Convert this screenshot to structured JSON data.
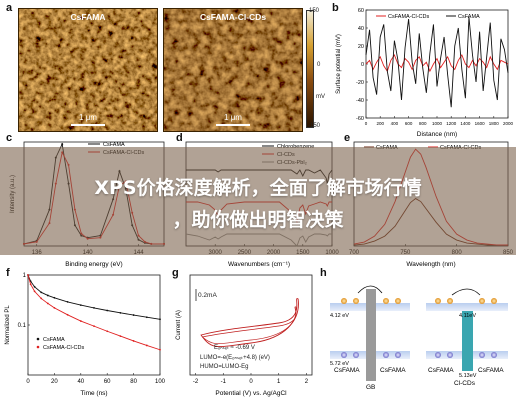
{
  "banner": {
    "line1": "XPS价格深度解析，全面了解市场行情",
    "line2": "，助你做出明智决策"
  },
  "panels": {
    "a": {
      "label": "a",
      "img1_title": "CsFAMA",
      "img2_title": "CsFAMA-Cl-CDs",
      "scale": "1 μm",
      "cbar_top": "150",
      "cbar_mid": "0",
      "cbar_bottom": "-150",
      "cbar_unit": "mV"
    },
    "b": {
      "label": "b"
    },
    "c": {
      "label": "c"
    },
    "d": {
      "label": "d"
    },
    "e": {
      "label": "e"
    },
    "f": {
      "label": "f"
    },
    "g": {
      "label": "g",
      "scale_label": "0.2mA",
      "eq1": "Eₒₙₛₑₜ ≈ -0.69 V",
      "eq2": "LUMO=-e(Eₒₙₛₑₜ+4.8) (eV)",
      "eq3": "HUMO=LUMO-Eg"
    },
    "h": {
      "label": "h",
      "left_top": "4.12 eV",
      "left_bottom": "5.72 eV",
      "right_top": "4.11eV",
      "right_bottom": "5.13eV",
      "left_name": "CsFAMA",
      "left_mid": "GB",
      "left_name2": "CsFAMA",
      "right_name": "CsFAMA",
      "right_mid": "Cl-CDs",
      "right_name2": "CsFAMA"
    }
  },
  "chart_data": [
    {
      "id": "b",
      "type": "line",
      "xlabel": "Distance (nm)",
      "ylabel": "Surface potential (mV)",
      "xlim": [
        0,
        2000
      ],
      "ylim": [
        -60,
        60
      ],
      "xticks": [
        0,
        200,
        400,
        600,
        800,
        1000,
        1200,
        1400,
        1600,
        1800,
        2000
      ],
      "yticks": [
        -60,
        -40,
        -20,
        0,
        20,
        40,
        60
      ],
      "legend_position": "top",
      "series": [
        {
          "name": "CsFAMA-Cl-CDs",
          "color": "#e02020",
          "x": [
            0,
            50,
            100,
            150,
            200,
            250,
            300,
            350,
            400,
            450,
            500,
            550,
            600,
            650,
            700,
            750,
            800,
            850,
            900,
            950,
            1000,
            1050,
            1100,
            1150,
            1200,
            1250,
            1300,
            1350,
            1400,
            1450,
            1500,
            1550,
            1600,
            1650,
            1700,
            1750,
            1800,
            1850,
            1900,
            1950,
            2000
          ],
          "y": [
            0,
            4,
            -6,
            2,
            8,
            -2,
            -8,
            4,
            10,
            0,
            -4,
            6,
            2,
            -6,
            4,
            8,
            -2,
            2,
            -8,
            0,
            6,
            -4,
            2,
            8,
            -2,
            -6,
            4,
            10,
            0,
            -4,
            4,
            -2,
            6,
            2,
            -4,
            8,
            0,
            -6,
            4,
            2,
            0
          ]
        },
        {
          "name": "CsFAMA",
          "color": "#111111",
          "x": [
            0,
            50,
            100,
            150,
            200,
            250,
            300,
            350,
            400,
            450,
            500,
            550,
            600,
            650,
            700,
            750,
            800,
            850,
            900,
            950,
            1000,
            1050,
            1100,
            1150,
            1200,
            1250,
            1300,
            1350,
            1400,
            1450,
            1500,
            1550,
            1600,
            1650,
            1700,
            1750,
            1800,
            1850,
            1900,
            1950,
            2000
          ],
          "y": [
            10,
            38,
            -15,
            -34,
            30,
            44,
            -8,
            -30,
            26,
            4,
            -40,
            18,
            50,
            2,
            -22,
            34,
            -5,
            -32,
            12,
            44,
            -25,
            6,
            30,
            -12,
            -48,
            20,
            40,
            -6,
            -38,
            52,
            10,
            -20,
            36,
            -30,
            8,
            46,
            -18,
            -40,
            28,
            16,
            -10
          ]
        }
      ]
    },
    {
      "id": "c",
      "type": "line",
      "xlabel": "Binding energy (eV)",
      "ylabel": "Intensity (a.u.)",
      "xlim": [
        135,
        146
      ],
      "xticks": [
        136,
        140,
        144
      ],
      "legend_position": "top-right",
      "series": [
        {
          "name": "CsFAMA",
          "color": "#111111",
          "x": [
            135,
            136,
            137,
            137.5,
            138,
            138.5,
            139,
            139.5,
            140,
            141,
            142,
            142.5,
            143,
            143.5,
            144,
            144.5,
            145,
            146
          ],
          "y": [
            0.02,
            0.05,
            0.35,
            0.85,
            0.98,
            0.6,
            0.2,
            0.1,
            0.08,
            0.1,
            0.45,
            0.72,
            0.55,
            0.2,
            0.06,
            0.03,
            0.02,
            0.02
          ]
        },
        {
          "name": "CsFAMA-Cl-CDs",
          "color": "#e02020",
          "x": [
            135,
            136,
            137,
            137.5,
            138,
            138.5,
            139,
            139.5,
            140,
            141,
            142,
            142.5,
            143,
            143.5,
            144,
            144.5,
            145,
            146
          ],
          "y": [
            0.02,
            0.04,
            0.22,
            0.6,
            0.9,
            0.78,
            0.35,
            0.12,
            0.07,
            0.08,
            0.3,
            0.58,
            0.62,
            0.32,
            0.1,
            0.04,
            0.02,
            0.02
          ]
        }
      ]
    },
    {
      "id": "d",
      "type": "line",
      "xlabel": "Wavenumbers (cm⁻¹)",
      "ylabel": "Transmittance",
      "xlim": [
        3500,
        1000
      ],
      "xticks": [
        3000,
        2500,
        2000,
        1500,
        1000
      ],
      "legend_position": "top-right",
      "series": [
        {
          "name": "Chlorobenzene",
          "color": "#111111"
        },
        {
          "name": "Cl-CDs",
          "color": "#e02020"
        },
        {
          "name": "Cl-CDs-PbI₂",
          "color": "#888888"
        }
      ]
    },
    {
      "id": "e",
      "type": "line",
      "xlabel": "Wavelength (nm)",
      "ylabel": "PL",
      "xlim": [
        700,
        850
      ],
      "xticks": [
        700,
        750,
        800,
        850
      ],
      "legend_position": "top",
      "series": [
        {
          "name": "CsFAMA",
          "color": "#6b2a14",
          "x": [
            700,
            710,
            720,
            730,
            740,
            750,
            755,
            760,
            765,
            770,
            780,
            790,
            800,
            810,
            820,
            830,
            840,
            850
          ],
          "y": [
            0.01,
            0.02,
            0.05,
            0.1,
            0.2,
            0.36,
            0.44,
            0.48,
            0.45,
            0.38,
            0.24,
            0.12,
            0.06,
            0.03,
            0.02,
            0.01,
            0.01,
            0.01
          ]
        },
        {
          "name": "CsFAMA-Cl-CDs",
          "color": "#e02020",
          "x": [
            700,
            710,
            720,
            730,
            740,
            750,
            755,
            760,
            765,
            770,
            780,
            790,
            800,
            810,
            820,
            830,
            840,
            850
          ],
          "y": [
            0.02,
            0.04,
            0.1,
            0.22,
            0.45,
            0.75,
            0.9,
            0.98,
            0.93,
            0.8,
            0.5,
            0.25,
            0.12,
            0.06,
            0.03,
            0.02,
            0.01,
            0.01
          ]
        }
      ]
    },
    {
      "id": "f",
      "type": "scatter",
      "xlabel": "Time (ns)",
      "ylabel": "Normalized PL",
      "xlim": [
        0,
        100
      ],
      "ylim": [
        0.01,
        1
      ],
      "yscale": "log",
      "xticks": [
        0,
        20,
        40,
        60,
        80,
        100
      ],
      "yticks": [
        1,
        0.1
      ],
      "legend_position": "bottom-left",
      "series": [
        {
          "name": "CsFAMA",
          "color": "#111111",
          "x": [
            0,
            2,
            5,
            10,
            15,
            20,
            30,
            40,
            50,
            60,
            70,
            80,
            90,
            100
          ],
          "y": [
            1,
            0.75,
            0.58,
            0.45,
            0.39,
            0.35,
            0.29,
            0.25,
            0.22,
            0.195,
            0.175,
            0.158,
            0.143,
            0.13
          ]
        },
        {
          "name": "CsFAMA-Cl-CDs",
          "color": "#e02020",
          "x": [
            0,
            2,
            5,
            10,
            15,
            20,
            30,
            40,
            50,
            60,
            70,
            80,
            90,
            100
          ],
          "y": [
            1,
            0.65,
            0.47,
            0.34,
            0.27,
            0.22,
            0.16,
            0.12,
            0.095,
            0.075,
            0.06,
            0.048,
            0.039,
            0.032
          ]
        }
      ]
    },
    {
      "id": "g",
      "type": "line",
      "xlabel": "Potential (V) vs. Ag/AgCl",
      "ylabel": "Current (A)",
      "xlim": [
        -2.2,
        2.2
      ],
      "xticks": [
        -2,
        -1,
        0,
        1,
        2
      ]
    }
  ]
}
